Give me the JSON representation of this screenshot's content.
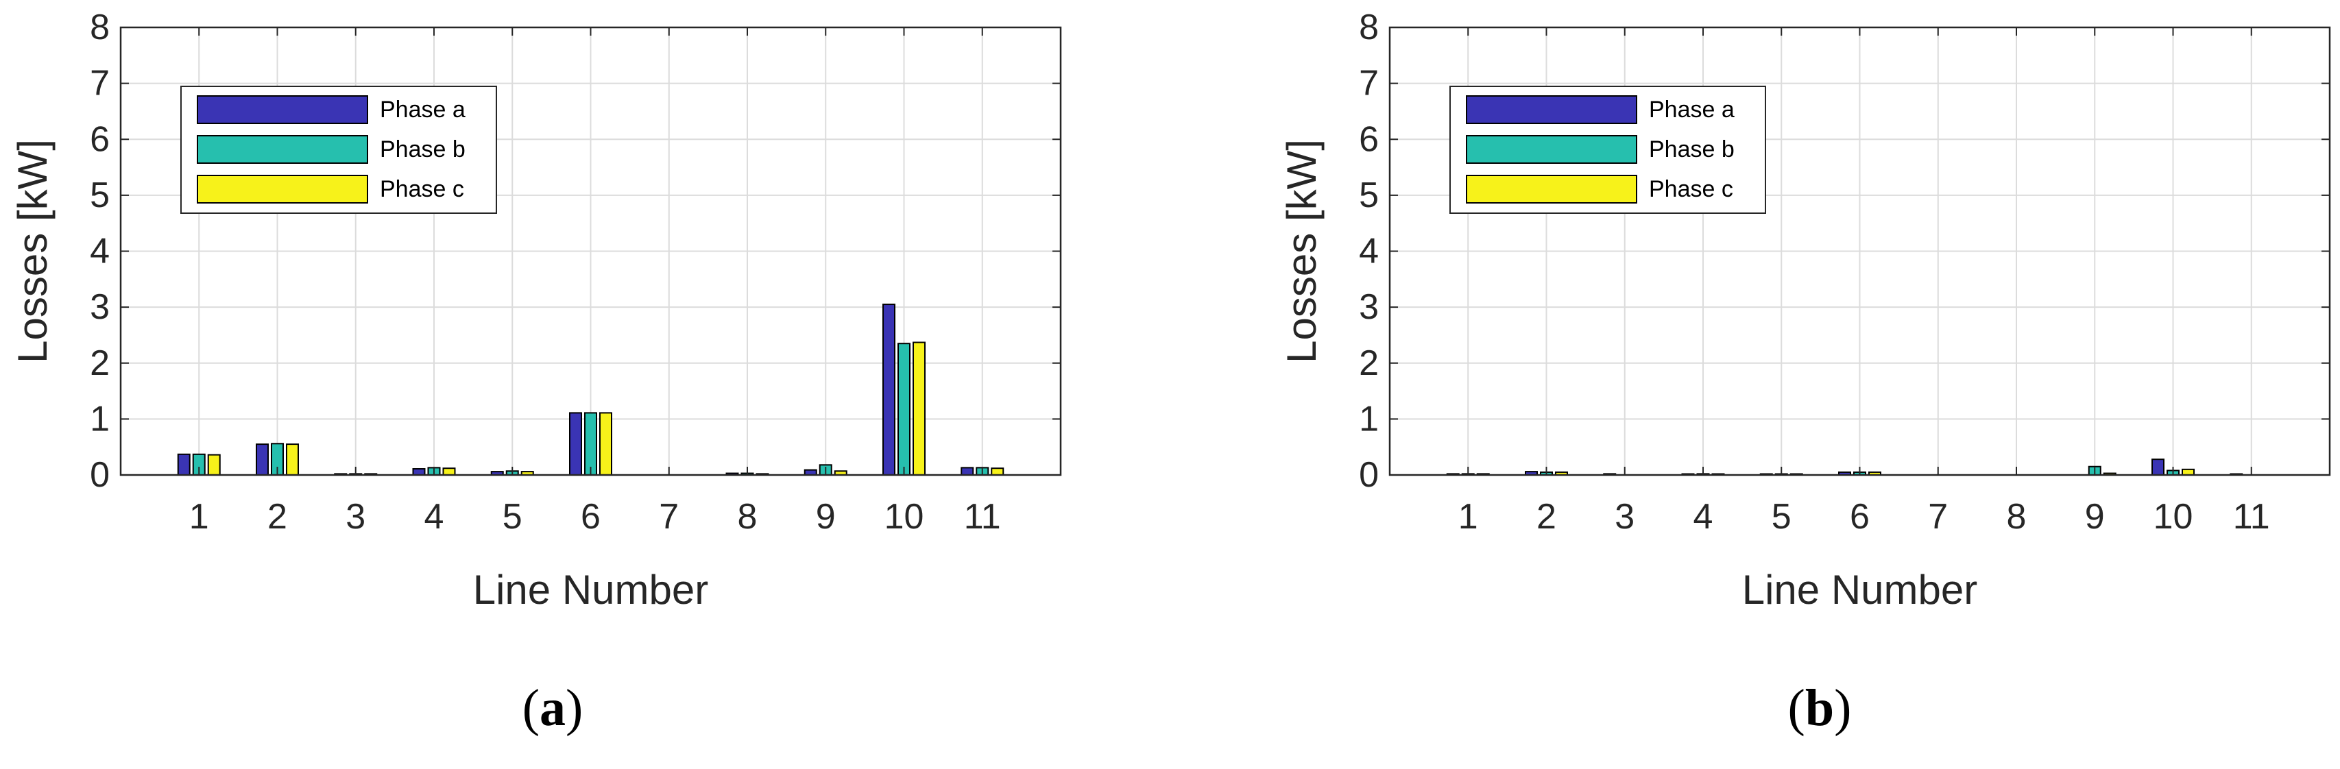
{
  "colors": {
    "phase_a": "#3a34b4",
    "phase_b": "#26bfae",
    "phase_c": "#f7f21a",
    "grid": "#dcdcdc",
    "axis": "#262626"
  },
  "chart_data": [
    {
      "type": "bar",
      "caption": "(a)",
      "caption_open": "(",
      "caption_letter": "a",
      "caption_close": ")",
      "title": "",
      "xlabel": "Line Number",
      "ylabel": "Losses [kW]",
      "ylim": [
        0,
        8
      ],
      "yticks": [
        "0",
        "1",
        "2",
        "3",
        "4",
        "5",
        "6",
        "7",
        "8"
      ],
      "categories": [
        "1",
        "2",
        "3",
        "4",
        "5",
        "6",
        "7",
        "8",
        "9",
        "10",
        "11"
      ],
      "grid": true,
      "legend_position": "top-left",
      "series": [
        {
          "name": "Phase a",
          "color_key": "phase_a",
          "values": [
            0.37,
            0.55,
            0.02,
            0.11,
            0.06,
            1.11,
            0.0,
            0.03,
            0.09,
            3.05,
            0.13
          ]
        },
        {
          "name": "Phase b",
          "color_key": "phase_b",
          "values": [
            0.37,
            0.56,
            0.02,
            0.13,
            0.07,
            1.11,
            0.0,
            0.03,
            0.18,
            2.35,
            0.13
          ]
        },
        {
          "name": "Phase c",
          "color_key": "phase_c",
          "values": [
            0.36,
            0.55,
            0.02,
            0.12,
            0.06,
            1.11,
            0.0,
            0.02,
            0.07,
            2.37,
            0.12
          ]
        }
      ]
    },
    {
      "type": "bar",
      "caption": "(b)",
      "caption_open": "(",
      "caption_letter": "b",
      "caption_close": ")",
      "title": "",
      "xlabel": "Line Number",
      "ylabel": "Losses [kW]",
      "ylim": [
        0,
        8
      ],
      "yticks": [
        "0",
        "1",
        "2",
        "3",
        "4",
        "5",
        "6",
        "7",
        "8"
      ],
      "categories": [
        "1",
        "2",
        "3",
        "4",
        "5",
        "6",
        "7",
        "8",
        "9",
        "10",
        "11"
      ],
      "grid": true,
      "legend_position": "top-left",
      "series": [
        {
          "name": "Phase a",
          "color_key": "phase_a",
          "values": [
            0.02,
            0.06,
            0.02,
            0.01,
            0.01,
            0.05,
            0.0,
            0.0,
            0.0,
            0.28,
            0.01
          ]
        },
        {
          "name": "Phase b",
          "color_key": "phase_b",
          "values": [
            0.02,
            0.05,
            0.0,
            0.02,
            0.01,
            0.05,
            0.0,
            0.0,
            0.15,
            0.08,
            0.0
          ]
        },
        {
          "name": "Phase c",
          "color_key": "phase_c",
          "values": [
            0.02,
            0.05,
            0.0,
            0.01,
            0.01,
            0.05,
            0.0,
            0.0,
            0.03,
            0.1,
            0.0
          ]
        }
      ]
    }
  ]
}
